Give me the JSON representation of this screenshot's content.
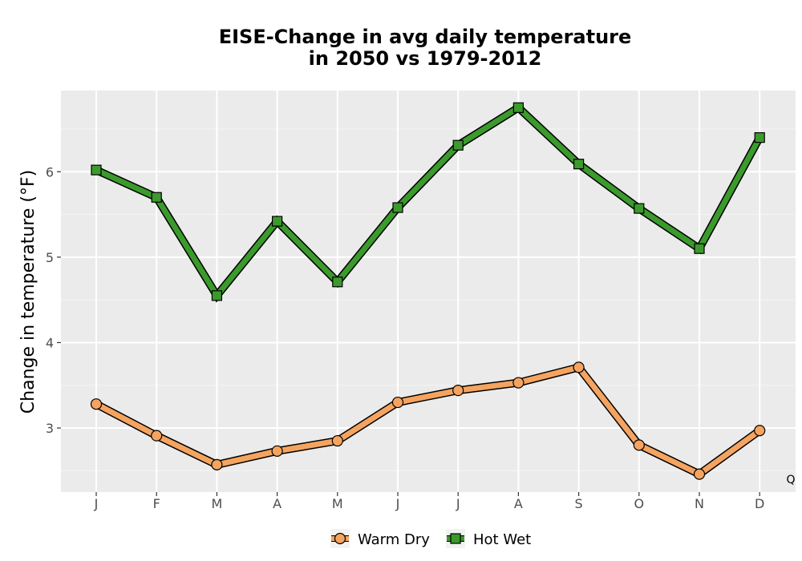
{
  "chart_data": {
    "type": "line",
    "title_lines": [
      "EISE-Change in avg daily temperature",
      "in 2050 vs 1979-2012"
    ],
    "xlabel": "",
    "ylabel": "Change in temperature (°F)",
    "categories": [
      "J",
      "F",
      "M",
      "A",
      "M",
      "J",
      "J",
      "A",
      "S",
      "O",
      "N",
      "D"
    ],
    "ylim": [
      2.25,
      6.95
    ],
    "yticks": [
      3,
      4,
      5,
      6
    ],
    "grid": true,
    "legend_position": "bottom",
    "corner_label": "Q",
    "series": [
      {
        "name": "Warm Dry",
        "marker": "circle",
        "color": "#f4a460",
        "values": [
          3.28,
          2.91,
          2.57,
          2.73,
          2.85,
          3.3,
          3.44,
          3.53,
          3.71,
          2.8,
          2.46,
          2.97
        ]
      },
      {
        "name": "Hot Wet",
        "marker": "square",
        "color": "#3b9a2c",
        "values": [
          6.02,
          5.7,
          4.55,
          5.42,
          4.71,
          5.58,
          6.31,
          6.75,
          6.09,
          5.57,
          5.1,
          6.4
        ]
      }
    ]
  }
}
